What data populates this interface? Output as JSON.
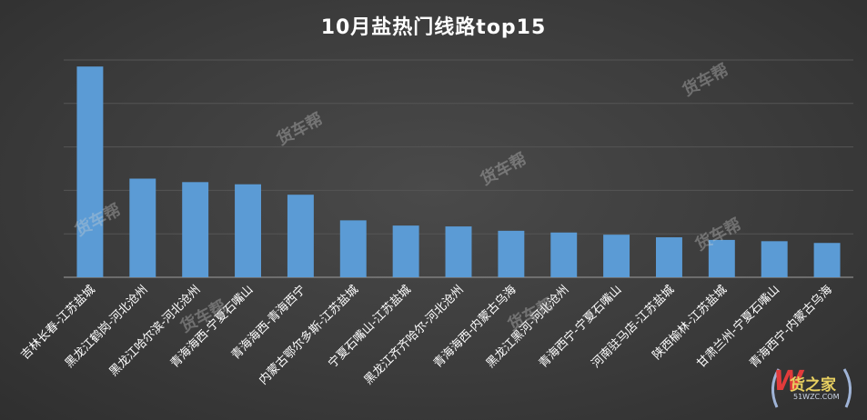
{
  "watermark_text": "货车帮",
  "logo": {
    "mark": "W",
    "name": "货之家",
    "site": "51WZC.COM"
  },
  "chart_data": {
    "type": "bar",
    "title": "10月盐热门线路top15",
    "categories": [
      "吉林长春-江苏盐城",
      "黑龙江鹤岗-河北沧州",
      "黑龙江哈尔滨-河北沧州",
      "青海海西-宁夏石嘴山",
      "青海海西-青海西宁",
      "内蒙古鄂尔多斯-江苏盐城",
      "宁夏石嘴山-江苏盐城",
      "黑龙江齐齐哈尔-河北沧州",
      "青海海西-内蒙古乌海",
      "黑龙江黑河-河北沧州",
      "青海西宁-宁夏石嘴山",
      "河南驻马店-江苏盐城",
      "陕西榆林-江苏盐城",
      "甘肃兰州-宁夏石嘴山",
      "青海西宁-内蒙古乌海"
    ],
    "values": [
      4.85,
      2.27,
      2.19,
      2.14,
      1.9,
      1.31,
      1.19,
      1.17,
      1.07,
      1.03,
      0.98,
      0.92,
      0.86,
      0.83,
      0.79
    ],
    "ylim": [
      0,
      5
    ],
    "gridlines": 5,
    "grid": true,
    "axis_labels_shown": false,
    "bar_color": "#5b9bd5",
    "background": "#3c3c3c"
  }
}
